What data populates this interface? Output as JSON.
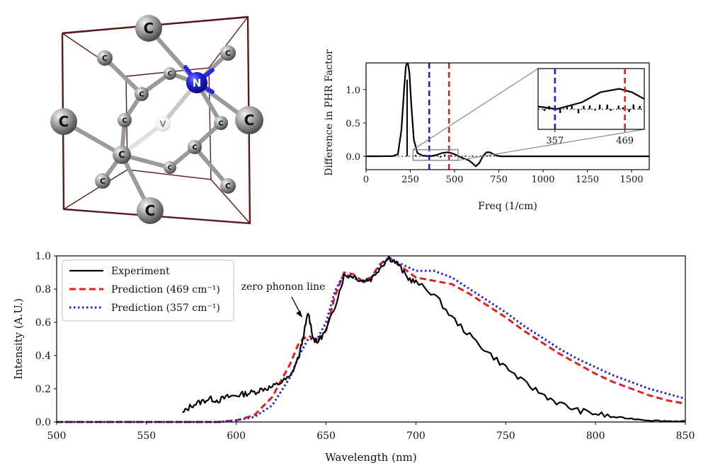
{
  "molecule": {
    "atoms": [
      {
        "label": "C"
      },
      {
        "label": "C"
      },
      {
        "label": "C"
      },
      {
        "label": "C"
      },
      {
        "label": "N"
      },
      {
        "label": "V"
      },
      {
        "label": "C"
      },
      {
        "label": "C"
      },
      {
        "label": "C"
      },
      {
        "label": "C"
      },
      {
        "label": "C"
      },
      {
        "label": "C"
      },
      {
        "label": "C"
      },
      {
        "label": "C"
      },
      {
        "label": "C"
      },
      {
        "label": "C"
      },
      {
        "label": "C"
      }
    ]
  },
  "chart_data": [
    {
      "type": "line",
      "xlabel": "Freq (1/cm)",
      "ylabel": "Difference in PHR Factor",
      "xlim": [
        0,
        1600
      ],
      "ylim": [
        -0.2,
        1.4
      ],
      "xticks": [
        0,
        250,
        500,
        750,
        1000,
        1250,
        1500
      ],
      "yticks": [
        0.0,
        0.5,
        1.0
      ],
      "xtick_labels": [
        "0",
        "250",
        "500",
        "750",
        "1000",
        "1250",
        "1500"
      ],
      "ytick_labels": [
        "0.0",
        "0.5",
        "1.0"
      ],
      "vlines": [
        {
          "x": 357,
          "color": "#1f1fe0",
          "style": "dashed"
        },
        {
          "x": 469,
          "color": "#e02020",
          "style": "dashed"
        }
      ],
      "series": [
        {
          "color": "#000000",
          "x": [
            0,
            150,
            180,
            200,
            215,
            225,
            235,
            245,
            255,
            270,
            290,
            320,
            360,
            400,
            430,
            460,
            480,
            500,
            540,
            580,
            600,
            620,
            640,
            660,
            680,
            700,
            720,
            740,
            760,
            800,
            900,
            1000,
            1200,
            1400,
            1600
          ],
          "y": [
            0,
            0.003,
            0.03,
            0.4,
            1.0,
            1.35,
            1.42,
            1.25,
            0.8,
            0.25,
            0.05,
            0.01,
            0.0,
            0.02,
            0.05,
            0.06,
            0.05,
            0.03,
            -0.02,
            -0.06,
            -0.1,
            -0.15,
            -0.1,
            0.0,
            0.06,
            0.06,
            0.03,
            0.01,
            0.0,
            0.0,
            0.0,
            0.0,
            0.0,
            0.0,
            0.0
          ]
        }
      ],
      "sticks": [
        {
          "x": 232,
          "y": 1.15
        },
        {
          "x": 60,
          "y": 0.01
        },
        {
          "x": 130,
          "y": 0.01
        },
        {
          "x": 280,
          "y": 0.02
        },
        {
          "x": 330,
          "y": 0.02
        },
        {
          "x": 380,
          "y": 0.02
        },
        {
          "x": 420,
          "y": -0.02
        },
        {
          "x": 445,
          "y": 0.03
        },
        {
          "x": 480,
          "y": 0.02
        },
        {
          "x": 520,
          "y": -0.01
        },
        {
          "x": 560,
          "y": 0.01
        },
        {
          "x": 600,
          "y": 0.01
        },
        {
          "x": 650,
          "y": 0.01
        },
        {
          "x": 700,
          "y": 0.01
        },
        {
          "x": 780,
          "y": 0.01
        },
        {
          "x": 1100,
          "y": 0.01
        }
      ],
      "inset": {
        "xlim": [
          330,
          500
        ],
        "ylim": [
          -0.06,
          0.12
        ],
        "xticks": [
          357,
          469
        ],
        "xtick_labels": [
          "357",
          "469"
        ]
      }
    },
    {
      "type": "line",
      "xlabel": "Wavelength (nm)",
      "ylabel": "Intensity (A.U.)",
      "xlim": [
        500,
        850
      ],
      "ylim": [
        0.0,
        1.0
      ],
      "xticks": [
        500,
        550,
        600,
        650,
        700,
        750,
        800,
        850
      ],
      "yticks": [
        0.0,
        0.2,
        0.4,
        0.6,
        0.8,
        1.0
      ],
      "xtick_labels": [
        "500",
        "550",
        "600",
        "650",
        "700",
        "750",
        "800",
        "850"
      ],
      "ytick_labels": [
        "0.0",
        "0.2",
        "0.4",
        "0.6",
        "0.8",
        "1.0"
      ],
      "legend_position": "top-left",
      "annotation": {
        "text": "zero phonon line",
        "x": 638,
        "y": 0.62
      },
      "series": [
        {
          "name": "Experiment",
          "color": "#000000",
          "style": "solid",
          "x": [
            570,
            575,
            580,
            585,
            590,
            595,
            600,
            605,
            610,
            615,
            620,
            625,
            630,
            635,
            638,
            640,
            643,
            645,
            650,
            655,
            660,
            665,
            670,
            675,
            680,
            685,
            690,
            695,
            700,
            710,
            720,
            730,
            740,
            750,
            760,
            770,
            780,
            790,
            800,
            810,
            820,
            830,
            840,
            850
          ],
          "y": [
            0.05,
            0.1,
            0.12,
            0.14,
            0.13,
            0.15,
            0.16,
            0.17,
            0.18,
            0.2,
            0.21,
            0.24,
            0.27,
            0.4,
            0.55,
            0.66,
            0.5,
            0.48,
            0.55,
            0.7,
            0.88,
            0.88,
            0.85,
            0.86,
            0.93,
            0.99,
            0.95,
            0.87,
            0.84,
            0.77,
            0.63,
            0.52,
            0.42,
            0.33,
            0.24,
            0.17,
            0.11,
            0.07,
            0.05,
            0.03,
            0.02,
            0.01,
            0.005,
            0.005
          ]
        },
        {
          "name": "Prediction (469 cm⁻¹)",
          "color": "#e02020",
          "style": "dashed",
          "x": [
            500,
            560,
            590,
            600,
            610,
            620,
            630,
            635,
            640,
            645,
            650,
            655,
            660,
            665,
            670,
            675,
            680,
            685,
            690,
            700,
            710,
            720,
            730,
            740,
            750,
            760,
            770,
            780,
            790,
            800,
            810,
            820,
            830,
            840,
            850
          ],
          "y": [
            0.0,
            0.0,
            0.0,
            0.01,
            0.04,
            0.15,
            0.35,
            0.48,
            0.52,
            0.49,
            0.55,
            0.76,
            0.9,
            0.89,
            0.85,
            0.87,
            0.95,
            0.99,
            0.95,
            0.87,
            0.85,
            0.83,
            0.77,
            0.7,
            0.63,
            0.55,
            0.48,
            0.41,
            0.35,
            0.29,
            0.24,
            0.2,
            0.16,
            0.13,
            0.11
          ]
        },
        {
          "name": "Prediction (357 cm⁻¹)",
          "color": "#1f1fe0",
          "style": "dotted",
          "x": [
            500,
            560,
            590,
            600,
            610,
            620,
            630,
            635,
            640,
            645,
            650,
            655,
            660,
            665,
            670,
            675,
            680,
            685,
            690,
            700,
            710,
            720,
            730,
            740,
            750,
            760,
            770,
            780,
            790,
            800,
            810,
            820,
            830,
            840,
            850
          ],
          "y": [
            0.0,
            0.0,
            0.0,
            0.01,
            0.03,
            0.1,
            0.27,
            0.4,
            0.5,
            0.5,
            0.6,
            0.79,
            0.89,
            0.87,
            0.84,
            0.86,
            0.94,
            0.99,
            0.96,
            0.91,
            0.91,
            0.87,
            0.8,
            0.73,
            0.66,
            0.58,
            0.51,
            0.44,
            0.38,
            0.33,
            0.28,
            0.24,
            0.2,
            0.17,
            0.14
          ]
        }
      ]
    }
  ],
  "legend": [
    {
      "label": "Experiment",
      "color": "#000000",
      "style": "solid"
    },
    {
      "label": "Prediction (469 cm⁻¹)",
      "color": "#e02020",
      "style": "dashed"
    },
    {
      "label": "Prediction (357 cm⁻¹)",
      "color": "#1f1fe0",
      "style": "dotted"
    }
  ]
}
